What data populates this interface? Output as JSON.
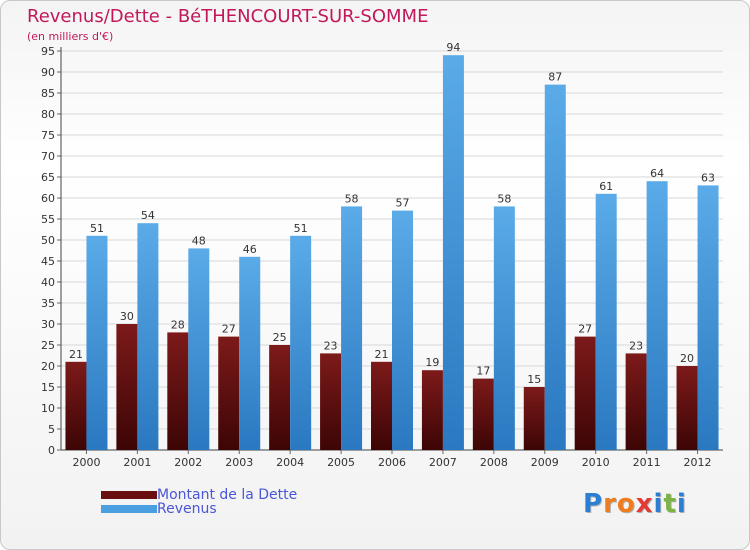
{
  "title": "Revenus/Dette - BéTHENCOURT-SUR-SOMME",
  "subtitle": "(en milliers d'€)",
  "colors": {
    "dette": "#6a0f0f",
    "revenus": "#4a9fe0",
    "title": "#c2185b",
    "legend_text": "#4a56d6"
  },
  "legend": {
    "dette_label": "Montant de la Dette",
    "revenus_label": "Revenus"
  },
  "logo": {
    "text": "Proxiti",
    "letters": [
      "P",
      "r",
      "o",
      "x",
      "i",
      "t",
      "i"
    ],
    "letter_colors": [
      "#2a7fd4",
      "#f07c1e",
      "#f07c1e",
      "#e53935",
      "#2a7fd4",
      "#7cb342",
      "#2a7fd4"
    ]
  },
  "chart_data": {
    "type": "bar",
    "title": "Revenus/Dette - BéTHENCOURT-SUR-SOMME",
    "ylabel": "(en milliers d'€)",
    "xlabel": "",
    "categories": [
      "2000",
      "2001",
      "2002",
      "2003",
      "2004",
      "2005",
      "2006",
      "2007",
      "2008",
      "2009",
      "2010",
      "2011",
      "2012"
    ],
    "series": [
      {
        "name": "Montant de la Dette",
        "values": [
          21,
          30,
          28,
          27,
          25,
          23,
          21,
          19,
          17,
          15,
          27,
          23,
          20
        ]
      },
      {
        "name": "Revenus",
        "values": [
          51,
          54,
          48,
          46,
          51,
          58,
          57,
          94,
          58,
          87,
          61,
          64,
          63
        ]
      }
    ],
    "ylim": [
      0,
      95
    ],
    "ytick_step": 5,
    "grid": true,
    "legend_position": "bottom-left"
  }
}
